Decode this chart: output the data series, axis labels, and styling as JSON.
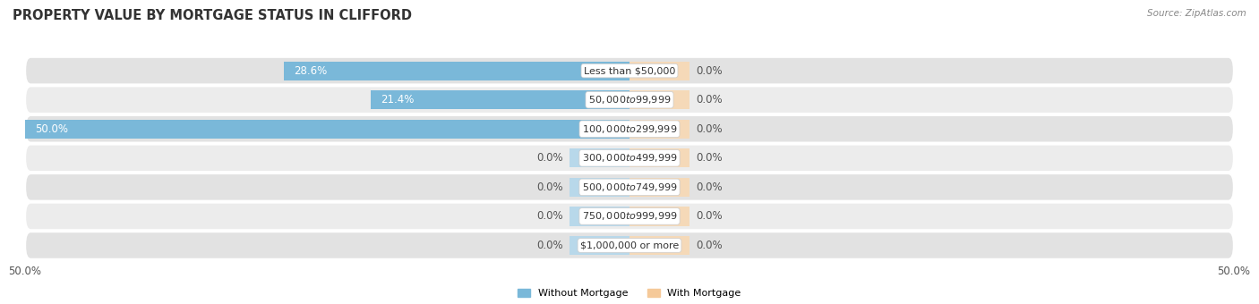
{
  "title": "PROPERTY VALUE BY MORTGAGE STATUS IN CLIFFORD",
  "source": "Source: ZipAtlas.com",
  "categories": [
    "Less than $50,000",
    "$50,000 to $99,999",
    "$100,000 to $299,999",
    "$300,000 to $499,999",
    "$500,000 to $749,999",
    "$750,000 to $999,999",
    "$1,000,000 or more"
  ],
  "without_mortgage": [
    28.6,
    21.4,
    50.0,
    0.0,
    0.0,
    0.0,
    0.0
  ],
  "with_mortgage": [
    0.0,
    0.0,
    0.0,
    0.0,
    0.0,
    0.0,
    0.0
  ],
  "without_mortgage_color": "#7ab8d9",
  "with_mortgage_color": "#f5c999",
  "zero_bar_color_blue": "#b8d8ea",
  "zero_bar_color_orange": "#f5d9b8",
  "row_color_dark": "#e2e2e2",
  "row_color_light": "#ececec",
  "xlim": [
    -50,
    50
  ],
  "xtick_left": -50,
  "xtick_right": 50,
  "xtick_label_left": "50.0%",
  "xtick_label_right": "50.0%",
  "title_fontsize": 10.5,
  "source_fontsize": 7.5,
  "label_fontsize": 8.5,
  "cat_fontsize": 8.0,
  "bar_height": 0.65,
  "zero_bar_width": 5.0,
  "figure_bg": "#ffffff",
  "legend_label_without": "Without Mortgage",
  "legend_label_with": "With Mortgage"
}
